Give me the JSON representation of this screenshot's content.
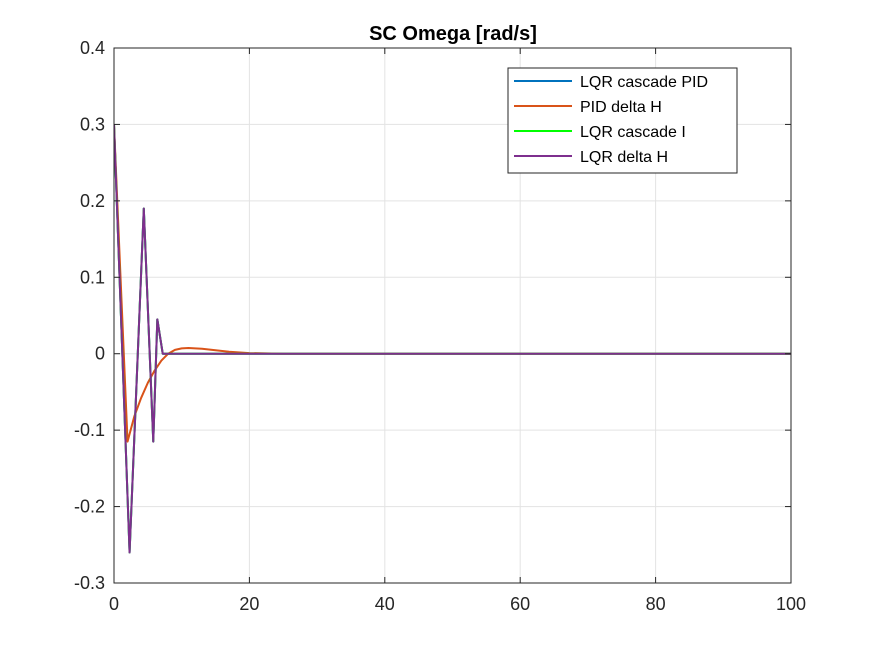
{
  "chart_data": {
    "type": "line",
    "title": "SC Omega [rad/s]",
    "xlabel": "",
    "ylabel": "",
    "xlim": [
      0,
      100
    ],
    "ylim": [
      -0.3,
      0.4
    ],
    "xticks": [
      0,
      20,
      40,
      60,
      80,
      100
    ],
    "yticks": [
      -0.3,
      -0.2,
      -0.1,
      0,
      0.1,
      0.2,
      0.3,
      0.4
    ],
    "xtick_labels": [
      "0",
      "20",
      "40",
      "60",
      "80",
      "100"
    ],
    "ytick_labels": [
      "-0.3",
      "-0.2",
      "-0.1",
      "0",
      "0.1",
      "0.2",
      "0.3",
      "0.4"
    ],
    "grid": true,
    "legend_position": "top-right",
    "series": [
      {
        "name": "LQR cascade PID",
        "color": "#0072BD",
        "x": [
          0,
          2.3,
          4.4,
          5.8,
          6.4,
          7.2,
          10,
          100
        ],
        "y": [
          0.3,
          -0.26,
          0.19,
          -0.115,
          0.045,
          0,
          0,
          0
        ]
      },
      {
        "name": "PID delta H",
        "color": "#D95319",
        "x": [
          0,
          2.0,
          3.0,
          4.0,
          5.0,
          6.0,
          7.0,
          8.0,
          9.0,
          10.0,
          11.0,
          13.0,
          15.0,
          17.0,
          20.0,
          25.0,
          30.0,
          100
        ],
        "y": [
          0.3,
          -0.115,
          -0.082,
          -0.058,
          -0.038,
          -0.022,
          -0.009,
          0.0,
          0.005,
          0.007,
          0.0075,
          0.0065,
          0.0045,
          0.0025,
          0.0008,
          0.0,
          0.0,
          0.0
        ]
      },
      {
        "name": "LQR cascade I",
        "color": "#00FF00",
        "x": [
          0,
          2.3,
          4.4,
          5.8,
          6.4,
          7.2,
          10,
          100
        ],
        "y": [
          0.3,
          -0.26,
          0.19,
          -0.115,
          0.045,
          0,
          0,
          0
        ]
      },
      {
        "name": "LQR delta H",
        "color": "#7E2F8E",
        "x": [
          0,
          2.3,
          4.4,
          5.8,
          6.4,
          7.2,
          10,
          100
        ],
        "y": [
          0.3,
          -0.26,
          0.19,
          -0.115,
          0.045,
          0,
          0,
          0
        ]
      }
    ]
  }
}
